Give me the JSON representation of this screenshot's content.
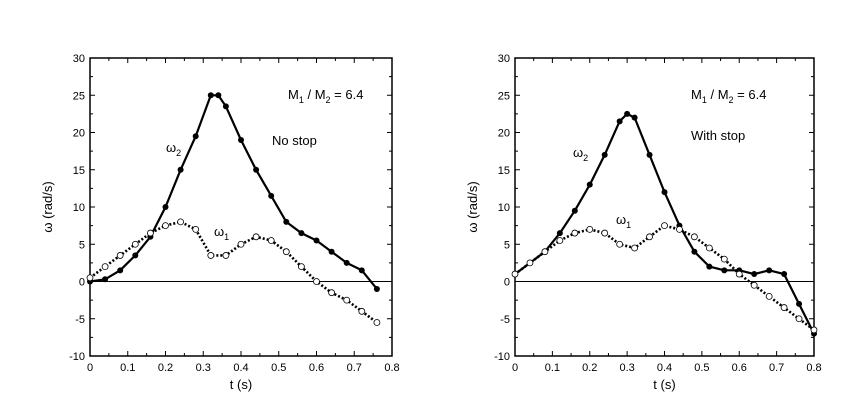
{
  "chart_data": [
    {
      "type": "line",
      "xlabel": "t  (s)",
      "ylabel": "ω  (rad/s)",
      "xlim": [
        0,
        0.8
      ],
      "ylim": [
        -10,
        30
      ],
      "xticks": [
        "0",
        "0.1",
        "0.2",
        "0.3",
        "0.4",
        "0.5",
        "0.6",
        "0.7",
        "0.8"
      ],
      "yticks": [
        "-10",
        "-5",
        "0",
        "5",
        "10",
        "15",
        "20",
        "25",
        "30"
      ],
      "ratio_label": {
        "main": "M",
        "sub1": "1",
        "sep": " / ",
        "main2": "M",
        "sub2": "2",
        "value": "= 6.4"
      },
      "condition_label": "No stop",
      "series": [
        {
          "name": "ω2",
          "label": {
            "main": "ω",
            "sub": "2"
          },
          "style": "solid",
          "x": [
            0,
            0.04,
            0.08,
            0.12,
            0.16,
            0.2,
            0.24,
            0.28,
            0.32,
            0.34,
            0.36,
            0.4,
            0.44,
            0.48,
            0.52,
            0.56,
            0.6,
            0.64,
            0.68,
            0.72,
            0.76
          ],
          "y": [
            0,
            0.3,
            1.5,
            3.5,
            6,
            10,
            15,
            19.5,
            25,
            25,
            23.5,
            19,
            15,
            11.5,
            8,
            6.5,
            5.5,
            4,
            2.5,
            1.5,
            -1
          ]
        },
        {
          "name": "ω1",
          "label": {
            "main": "ω",
            "sub": "1"
          },
          "style": "dotted",
          "x": [
            0,
            0.04,
            0.08,
            0.12,
            0.16,
            0.2,
            0.24,
            0.28,
            0.32,
            0.36,
            0.4,
            0.44,
            0.48,
            0.52,
            0.56,
            0.6,
            0.64,
            0.68,
            0.72,
            0.76
          ],
          "y": [
            0.5,
            2,
            3.5,
            5,
            6.5,
            7.5,
            8,
            7,
            3.5,
            3.5,
            5,
            6,
            5.5,
            4,
            2,
            0,
            -1.5,
            -2.5,
            -4,
            -5.5
          ]
        }
      ]
    },
    {
      "type": "line",
      "xlabel": "t  (s)",
      "ylabel": "ω  (rad/s)",
      "xlim": [
        0,
        0.8
      ],
      "ylim": [
        -10,
        30
      ],
      "xticks": [
        "0",
        "0.1",
        "0.2",
        "0.3",
        "0.4",
        "0.5",
        "0.6",
        "0.7",
        "0.8"
      ],
      "yticks": [
        "-10",
        "-5",
        "0",
        "5",
        "10",
        "15",
        "20",
        "25",
        "30"
      ],
      "ratio_label": {
        "main": "M",
        "sub1": "1",
        "sep": " / ",
        "main2": "M",
        "sub2": "2",
        "value": "= 6.4"
      },
      "condition_label": "With stop",
      "series": [
        {
          "name": "ω2",
          "label": {
            "main": "ω",
            "sub": "2"
          },
          "style": "solid",
          "x": [
            0,
            0.04,
            0.08,
            0.12,
            0.16,
            0.2,
            0.24,
            0.28,
            0.3,
            0.32,
            0.36,
            0.4,
            0.44,
            0.48,
            0.52,
            0.56,
            0.6,
            0.64,
            0.68,
            0.72,
            0.76,
            0.8
          ],
          "y": [
            1,
            2.5,
            4,
            6.5,
            9.5,
            13,
            17,
            21.5,
            22.5,
            22,
            17,
            12,
            7.5,
            4,
            2,
            1.5,
            1.5,
            1,
            1.5,
            1,
            -3,
            -7
          ]
        },
        {
          "name": "ω1",
          "label": {
            "main": "ω",
            "sub": "1"
          },
          "style": "dotted",
          "x": [
            0,
            0.04,
            0.08,
            0.12,
            0.16,
            0.2,
            0.24,
            0.28,
            0.32,
            0.36,
            0.4,
            0.44,
            0.48,
            0.52,
            0.56,
            0.6,
            0.64,
            0.68,
            0.72,
            0.76,
            0.8
          ],
          "y": [
            1,
            2.5,
            4,
            5.5,
            6.5,
            7,
            6.5,
            5,
            4.5,
            6,
            7.5,
            7,
            6,
            4.5,
            3,
            1,
            -0.5,
            -2,
            -3.5,
            -5,
            -6.5
          ]
        }
      ]
    }
  ]
}
